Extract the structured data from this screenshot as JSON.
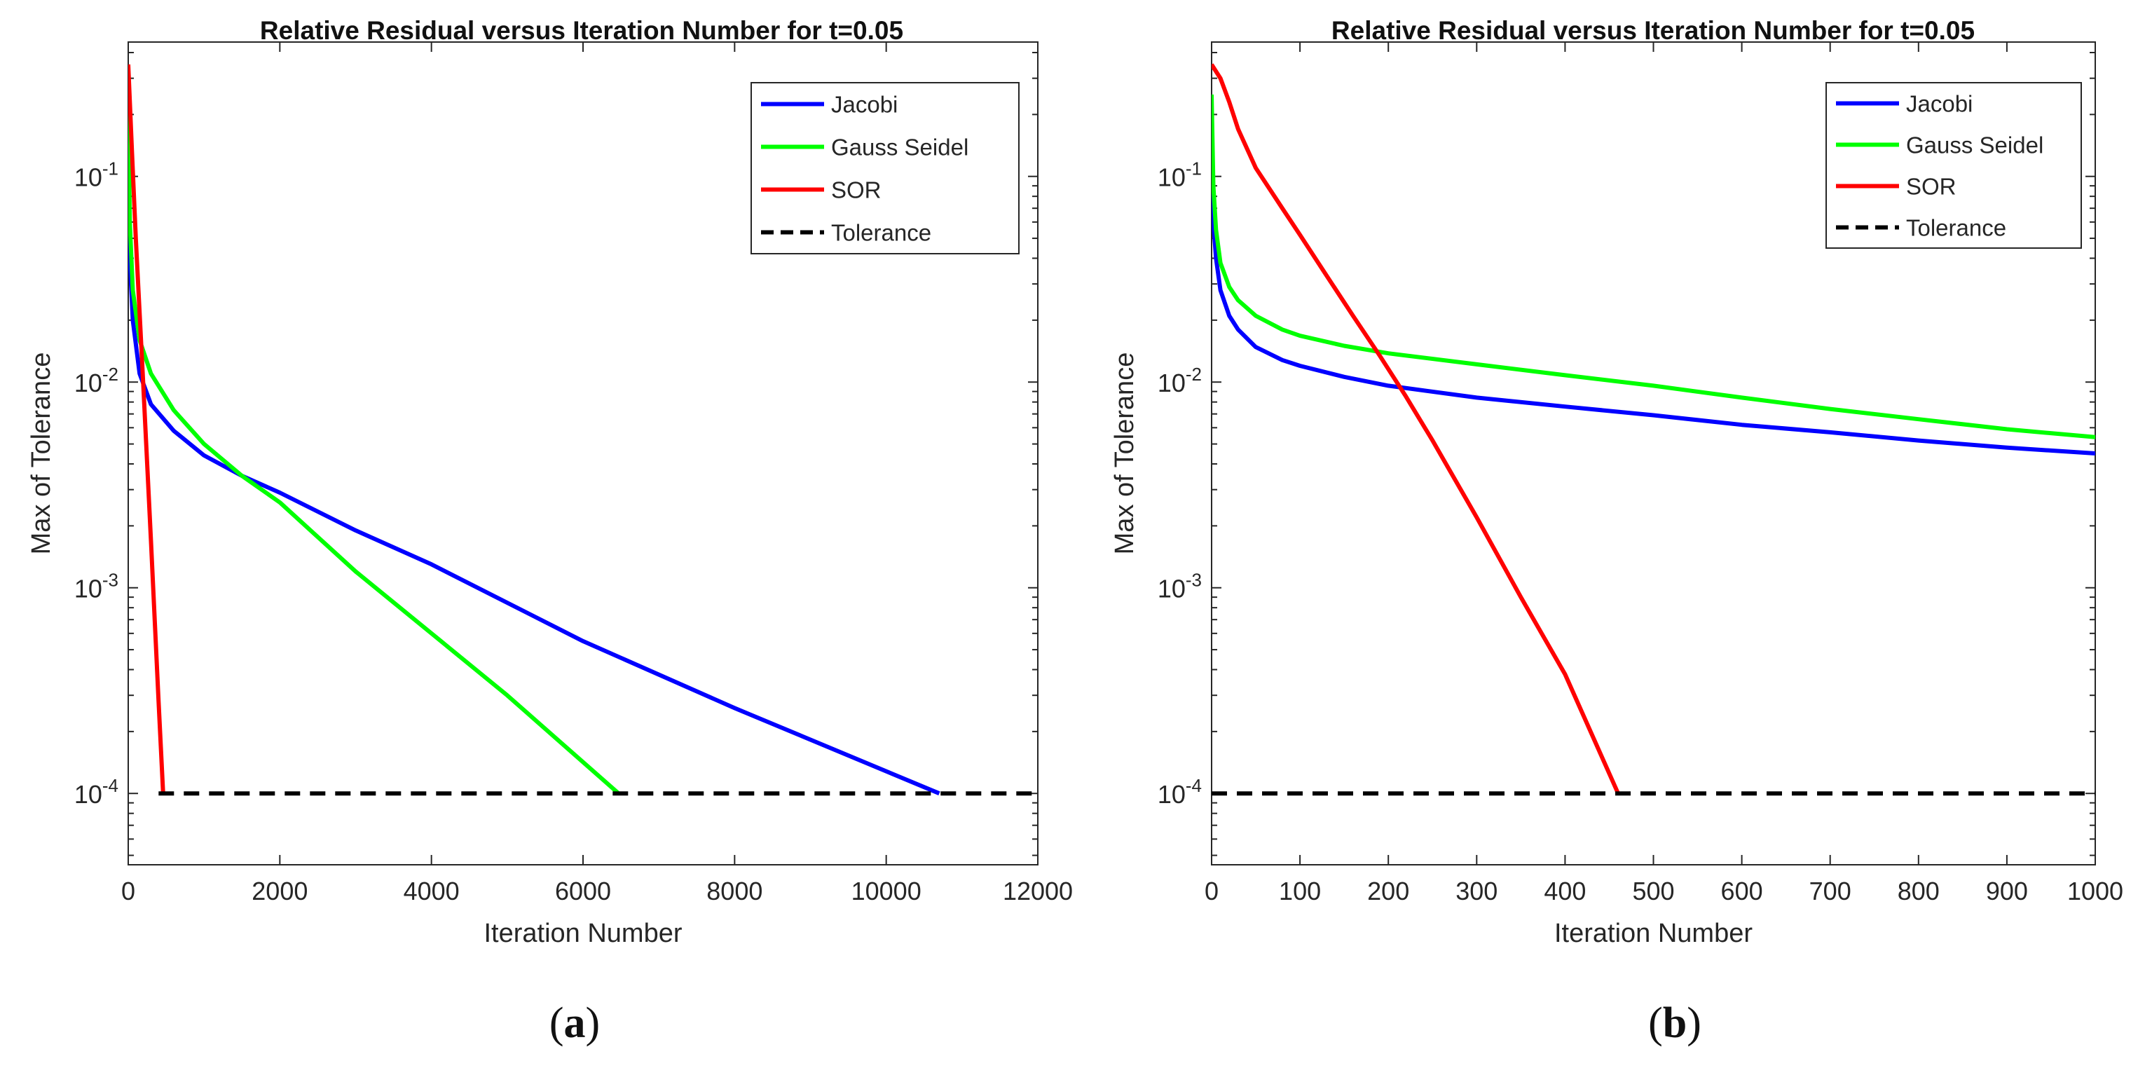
{
  "figure_captions": [
    {
      "open": "(",
      "letter": "a",
      "close": ")"
    },
    {
      "open": "(",
      "letter": "b",
      "close": ")"
    }
  ],
  "colors": {
    "jacobi": "#0000ff",
    "gauss_seidel": "#00ff00",
    "sor": "#ff0000",
    "tolerance": "#000000"
  },
  "chart_data": [
    {
      "type": "line",
      "title": "Relative Residual versus Iteration Number for t=0.05",
      "xlabel": "Iteration Number",
      "ylabel": "Max of Tolerance",
      "yscale": "log",
      "xlim": [
        0,
        12000
      ],
      "ylim": [
        4.5e-05,
        0.45
      ],
      "xticks": [
        0,
        2000,
        4000,
        6000,
        8000,
        10000,
        12000
      ],
      "yticks": [
        {
          "value": 0.0001,
          "base": "10",
          "exp": "-4"
        },
        {
          "value": 0.001,
          "base": "10",
          "exp": "-3"
        },
        {
          "value": 0.01,
          "base": "10",
          "exp": "-2"
        },
        {
          "value": 0.1,
          "base": "10",
          "exp": "-1"
        }
      ],
      "legend_position": "top-right",
      "series": [
        {
          "name": "Jacobi",
          "color": "#0000ff",
          "dash": false,
          "x": [
            0,
            20,
            60,
            150,
            300,
            600,
            1000,
            1500,
            2000,
            3000,
            4000,
            6000,
            8000,
            10700
          ],
          "y": [
            0.25,
            0.04,
            0.02,
            0.011,
            0.0078,
            0.0058,
            0.0044,
            0.0035,
            0.0029,
            0.0019,
            0.0013,
            0.00055,
            0.00026,
            0.0001
          ]
        },
        {
          "name": "Gauss Seidel",
          "color": "#00ff00",
          "dash": false,
          "x": [
            0,
            20,
            60,
            150,
            300,
            600,
            1000,
            1500,
            2000,
            3000,
            4000,
            5000,
            6470
          ],
          "y": [
            0.25,
            0.06,
            0.028,
            0.016,
            0.011,
            0.0073,
            0.005,
            0.0035,
            0.0026,
            0.0012,
            0.0006,
            0.0003,
            0.0001
          ]
        },
        {
          "name": "SOR",
          "color": "#ff0000",
          "dash": false,
          "x": [
            0,
            50,
            100,
            200,
            300,
            400,
            460
          ],
          "y": [
            0.35,
            0.13,
            0.05,
            0.0095,
            0.0017,
            0.00028,
            0.0001
          ]
        },
        {
          "name": "Tolerance",
          "color": "#000000",
          "dash": true,
          "x": [
            400,
            12000
          ],
          "y": [
            0.0001,
            0.0001
          ]
        }
      ]
    },
    {
      "type": "line",
      "title": "Relative Residual versus Iteration Number for t=0.05",
      "xlabel": "Iteration Number",
      "ylabel": "Max of Tolerance",
      "yscale": "log",
      "xlim": [
        0,
        1000
      ],
      "ylim": [
        4.5e-05,
        0.45
      ],
      "xticks": [
        0,
        100,
        200,
        300,
        400,
        500,
        600,
        700,
        800,
        900,
        1000
      ],
      "yticks": [
        {
          "value": 0.0001,
          "base": "10",
          "exp": "-4"
        },
        {
          "value": 0.001,
          "base": "10",
          "exp": "-3"
        },
        {
          "value": 0.01,
          "base": "10",
          "exp": "-2"
        },
        {
          "value": 0.1,
          "base": "10",
          "exp": "-1"
        }
      ],
      "legend_position": "top-right",
      "series": [
        {
          "name": "Jacobi",
          "color": "#0000ff",
          "dash": false,
          "x": [
            0,
            2,
            5,
            10,
            20,
            30,
            50,
            80,
            100,
            150,
            200,
            300,
            400,
            500,
            600,
            700,
            800,
            900,
            1000
          ],
          "y": [
            0.1,
            0.06,
            0.04,
            0.028,
            0.021,
            0.018,
            0.0148,
            0.0128,
            0.012,
            0.0106,
            0.0096,
            0.0084,
            0.0076,
            0.0069,
            0.0062,
            0.0057,
            0.0052,
            0.0048,
            0.0045
          ]
        },
        {
          "name": "Gauss Seidel",
          "color": "#00ff00",
          "dash": false,
          "x": [
            0,
            2,
            5,
            10,
            20,
            30,
            50,
            80,
            100,
            150,
            200,
            300,
            400,
            500,
            600,
            700,
            800,
            900,
            1000
          ],
          "y": [
            0.25,
            0.09,
            0.055,
            0.038,
            0.029,
            0.025,
            0.021,
            0.018,
            0.0168,
            0.015,
            0.0138,
            0.0122,
            0.0108,
            0.0096,
            0.0084,
            0.0074,
            0.0066,
            0.0059,
            0.0054
          ]
        },
        {
          "name": "SOR",
          "color": "#ff0000",
          "dash": false,
          "x": [
            0,
            10,
            20,
            30,
            50,
            80,
            100,
            130,
            160,
            190,
            220,
            250,
            300,
            350,
            400,
            460
          ],
          "y": [
            0.35,
            0.3,
            0.23,
            0.17,
            0.11,
            0.07,
            0.052,
            0.033,
            0.021,
            0.0135,
            0.0085,
            0.0052,
            0.0022,
            0.0009,
            0.00038,
            0.0001
          ]
        },
        {
          "name": "Tolerance",
          "color": "#000000",
          "dash": true,
          "x": [
            0,
            1000
          ],
          "y": [
            0.0001,
            0.0001
          ]
        }
      ]
    }
  ]
}
